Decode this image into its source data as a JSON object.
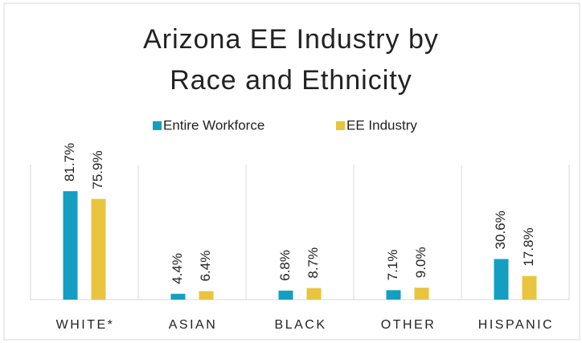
{
  "chart_data": {
    "type": "bar",
    "title": "Arizona EE Industry by Race and Ethnicity",
    "categories": [
      "WHITE*",
      "ASIAN",
      "BLACK",
      "OTHER",
      "HISPANIC"
    ],
    "series": [
      {
        "name": "Entire Workforce",
        "color": "#149fc2",
        "values": [
          81.7,
          4.4,
          6.8,
          7.1,
          30.6
        ],
        "value_labels": [
          "81.7%",
          "4.4%",
          "6.8%",
          "7.1%",
          "30.6%"
        ]
      },
      {
        "name": "EE Industry",
        "color": "#e8c43f",
        "values": [
          75.9,
          6.4,
          8.7,
          9.0,
          17.8
        ],
        "value_labels": [
          "75.9%",
          "6.4%",
          "8.7%",
          "9.0%",
          "17.8%"
        ]
      }
    ],
    "legend": "top"
  }
}
